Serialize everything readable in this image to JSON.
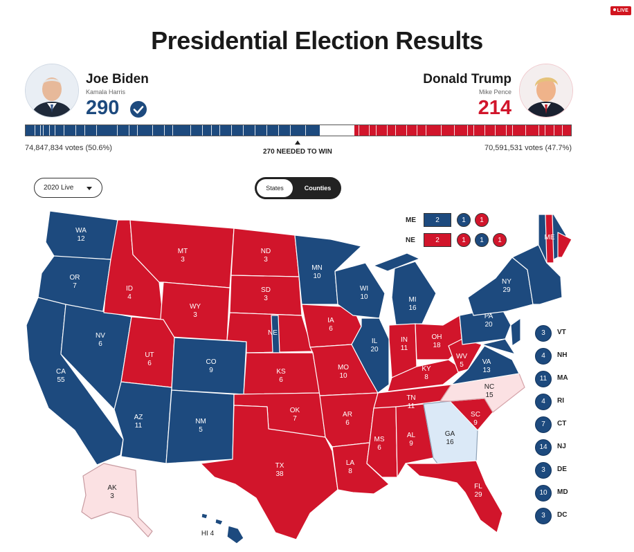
{
  "live_badge": "LIVE",
  "title": "Presidential Election Results",
  "colors": {
    "dem": "#1d4a7e",
    "rep": "#d1152b",
    "lean_dem": "#dbe9f7",
    "lean_rep": "#fbe1e3"
  },
  "biden": {
    "name": "Joe Biden",
    "running_mate": "Kamala Harris",
    "electoral_votes": "290",
    "popular": "74,847,834 votes (50.6%)",
    "icon": "checkmark-icon"
  },
  "trump": {
    "name": "Donald Trump",
    "running_mate": "Mike Pence",
    "electoral_votes": "214",
    "popular": "70,591,531 votes (47.7%)"
  },
  "needed_label": "270 NEEDED TO WIN",
  "electoral_total": 538,
  "controls": {
    "dropdown_value": "2020 Live",
    "toggle_states": "States",
    "toggle_counties": "Counties"
  },
  "split_states": {
    "me": {
      "label": "ME",
      "boxes": [
        {
          "value": "2",
          "party": "dem"
        }
      ],
      "circles": [
        {
          "value": "1",
          "party": "dem"
        },
        {
          "value": "1",
          "party": "rep"
        }
      ]
    },
    "ne": {
      "label": "NE",
      "boxes": [
        {
          "value": "2",
          "party": "rep"
        }
      ],
      "circles": [
        {
          "value": "1",
          "party": "rep"
        },
        {
          "value": "1",
          "party": "dem"
        },
        {
          "value": "1",
          "party": "rep"
        }
      ]
    }
  },
  "small_states": [
    {
      "abbr": "VT",
      "ev": "3"
    },
    {
      "abbr": "NH",
      "ev": "4"
    },
    {
      "abbr": "MA",
      "ev": "11"
    },
    {
      "abbr": "RI",
      "ev": "4"
    },
    {
      "abbr": "CT",
      "ev": "7"
    },
    {
      "abbr": "NJ",
      "ev": "14"
    },
    {
      "abbr": "DE",
      "ev": "3"
    },
    {
      "abbr": "MD",
      "ev": "10"
    },
    {
      "abbr": "DC",
      "ev": "3"
    }
  ],
  "states": {
    "WA": {
      "abbr": "WA",
      "ev": "12"
    },
    "OR": {
      "abbr": "OR",
      "ev": "7"
    },
    "CA": {
      "abbr": "CA",
      "ev": "55"
    },
    "NV": {
      "abbr": "NV",
      "ev": "6"
    },
    "ID": {
      "abbr": "ID",
      "ev": "4"
    },
    "MT": {
      "abbr": "MT",
      "ev": "3"
    },
    "WY": {
      "abbr": "WY",
      "ev": "3"
    },
    "UT": {
      "abbr": "UT",
      "ev": "6"
    },
    "AZ": {
      "abbr": "AZ",
      "ev": "11"
    },
    "CO": {
      "abbr": "CO",
      "ev": "9"
    },
    "NM": {
      "abbr": "NM",
      "ev": "5"
    },
    "ND": {
      "abbr": "ND",
      "ev": "3"
    },
    "SD": {
      "abbr": "SD",
      "ev": "3"
    },
    "NE": {
      "abbr": "NE",
      "ev": ""
    },
    "KS": {
      "abbr": "KS",
      "ev": "6"
    },
    "OK": {
      "abbr": "OK",
      "ev": "7"
    },
    "TX": {
      "abbr": "TX",
      "ev": "38"
    },
    "MN": {
      "abbr": "MN",
      "ev": "10"
    },
    "IA": {
      "abbr": "IA",
      "ev": "6"
    },
    "MO": {
      "abbr": "MO",
      "ev": "10"
    },
    "AR": {
      "abbr": "AR",
      "ev": "6"
    },
    "LA": {
      "abbr": "LA",
      "ev": "8"
    },
    "WI": {
      "abbr": "WI",
      "ev": "10"
    },
    "IL": {
      "abbr": "IL",
      "ev": "20"
    },
    "MI": {
      "abbr": "MI",
      "ev": "16"
    },
    "IN": {
      "abbr": "IN",
      "ev": "11"
    },
    "OH": {
      "abbr": "OH",
      "ev": "18"
    },
    "KY": {
      "abbr": "KY",
      "ev": "8"
    },
    "TN": {
      "abbr": "TN",
      "ev": "11"
    },
    "MS": {
      "abbr": "MS",
      "ev": "6"
    },
    "AL": {
      "abbr": "AL",
      "ev": "9"
    },
    "GA": {
      "abbr": "GA",
      "ev": "16"
    },
    "FL": {
      "abbr": "FL",
      "ev": "29"
    },
    "SC": {
      "abbr": "SC",
      "ev": "9"
    },
    "NC": {
      "abbr": "NC",
      "ev": "15"
    },
    "VA": {
      "abbr": "VA",
      "ev": "13"
    },
    "WV": {
      "abbr": "WV",
      "ev": "5"
    },
    "PA": {
      "abbr": "PA",
      "ev": "20"
    },
    "NY": {
      "abbr": "NY",
      "ev": "29"
    },
    "ME": {
      "abbr": "ME",
      "ev": ""
    },
    "AK": {
      "abbr": "AK",
      "ev": "3"
    },
    "HI": {
      "label": "HI 4"
    }
  }
}
